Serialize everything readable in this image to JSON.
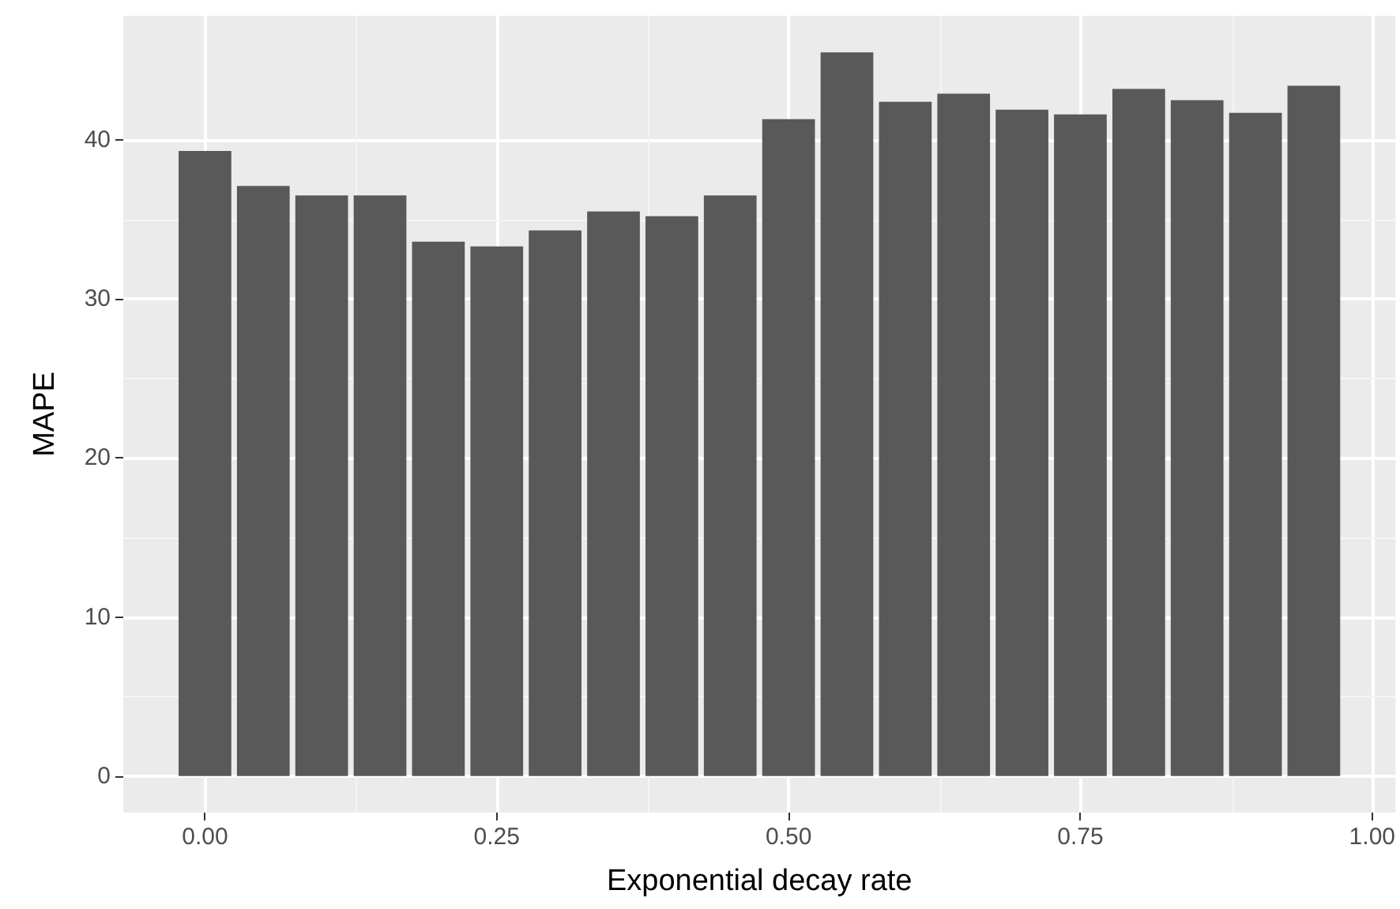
{
  "chart_data": {
    "type": "bar",
    "xlabel": "Exponential decay rate",
    "ylabel": "MAPE",
    "x": [
      0,
      0.05,
      0.1,
      0.15,
      0.2,
      0.25,
      0.3,
      0.35,
      0.4,
      0.45,
      0.5,
      0.55,
      0.6,
      0.65,
      0.7,
      0.75,
      0.8,
      0.85,
      0.9,
      0.95
    ],
    "values": [
      39.3,
      37.1,
      36.5,
      36.5,
      33.6,
      33.3,
      34.3,
      35.5,
      35.2,
      36.5,
      41.3,
      45.5,
      42.4,
      42.9,
      41.9,
      41.6,
      43.2,
      42.5,
      41.7,
      43.4
    ],
    "color": "#595959",
    "xlim": [
      -0.07,
      1.02
    ],
    "xticks": [
      {
        "value": 0,
        "label": "0.00"
      },
      {
        "value": 0.25,
        "label": "0.25"
      },
      {
        "value": 0.5,
        "label": "0.50"
      },
      {
        "value": 0.75,
        "label": "0.75"
      },
      {
        "value": 1,
        "label": "1.00"
      }
    ],
    "ylim": [
      -2.3,
      47.8
    ],
    "yticks": [
      0,
      10,
      20,
      30,
      40
    ],
    "grid": true
  }
}
